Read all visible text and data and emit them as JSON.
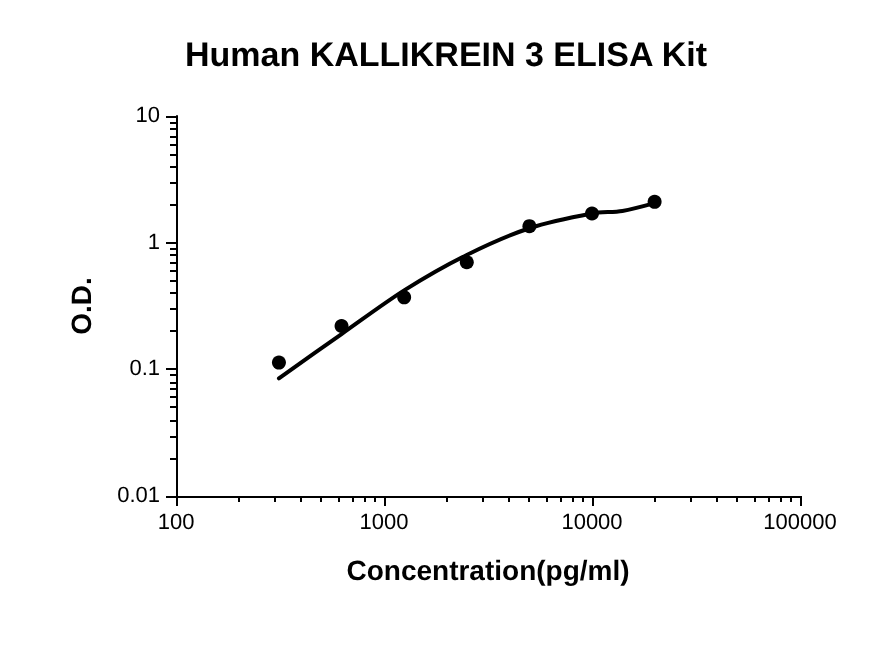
{
  "chart_data": {
    "type": "scatter",
    "title": "Human KALLIKREIN 3 ELISA Kit",
    "xlabel": "Concentration(pg/ml)",
    "ylabel": "O.D.",
    "log": "xy",
    "xlim": [
      100,
      100000
    ],
    "xticks": [
      100,
      1000,
      10000,
      100000
    ],
    "ylim": [
      0.01,
      10
    ],
    "yticks": [
      0.01,
      0.1,
      1,
      10
    ],
    "grid": false,
    "series": [
      {
        "color": "#000000",
        "marker": "circle",
        "x": [
          312.5,
          625,
          1250,
          2500,
          5000,
          10000,
          20000
        ],
        "values": [
          0.113,
          0.22,
          0.37,
          0.7,
          1.35,
          1.7,
          2.1
        ]
      },
      {
        "type": "line",
        "color": "#000000",
        "marker": "none",
        "line_style": "solid",
        "x": [
          312.5,
          625,
          1250,
          2500,
          5000,
          10000,
          14000,
          20000
        ],
        "values": [
          0.085,
          0.19,
          0.42,
          0.8,
          1.3,
          1.7,
          1.78,
          2.05
        ]
      }
    ]
  }
}
